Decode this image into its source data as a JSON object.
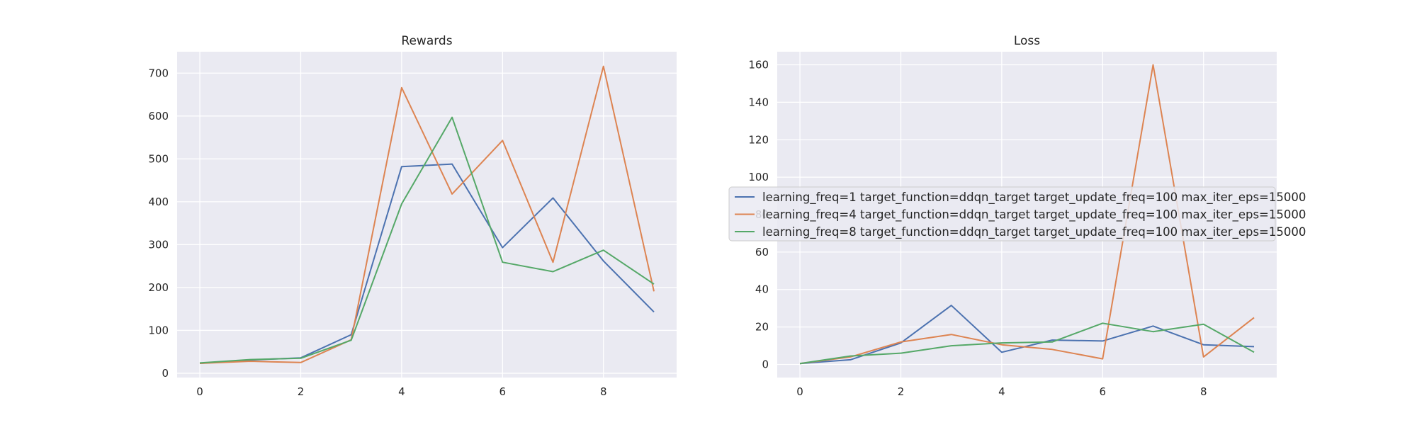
{
  "chart_data": [
    {
      "type": "line",
      "title": "Rewards",
      "xlabel": "",
      "ylabel": "",
      "x": [
        0,
        1,
        2,
        3,
        4,
        5,
        6,
        7,
        8,
        9
      ],
      "xlim": [
        -0.45,
        9.45
      ],
      "ylim": [
        -10,
        750
      ],
      "xticks": [
        0,
        2,
        4,
        6,
        8
      ],
      "yticks": [
        0,
        100,
        200,
        300,
        400,
        500,
        600,
        700
      ],
      "grid": true,
      "series": [
        {
          "values": [
            23,
            31,
            36,
            90,
            482,
            488,
            293,
            409,
            262,
            143
          ]
        },
        {
          "values": [
            23,
            28,
            25,
            78,
            666,
            418,
            543,
            259,
            716,
            191
          ]
        },
        {
          "values": [
            24,
            32,
            35,
            77,
            395,
            597,
            259,
            237,
            287,
            208
          ]
        }
      ]
    },
    {
      "type": "line",
      "title": "Loss",
      "xlabel": "",
      "ylabel": "",
      "x": [
        0,
        1,
        2,
        3,
        4,
        5,
        6,
        7,
        8,
        9
      ],
      "xlim": [
        -0.45,
        9.45
      ],
      "ylim": [
        -7,
        167
      ],
      "xticks": [
        0,
        2,
        4,
        6,
        8
      ],
      "yticks": [
        0,
        20,
        40,
        60,
        80,
        100,
        120,
        140,
        160
      ],
      "grid": true,
      "legend_position": "center-left",
      "series": [
        {
          "name": "learning_freq=1 target_function=ddqn_target target_update_freq=100 max_iter_eps=15000",
          "values": [
            0.5,
            2.5,
            11.5,
            31.5,
            6.5,
            13,
            12.5,
            20.5,
            10.5,
            9.5
          ]
        },
        {
          "name": "learning_freq=4 target_function=ddqn_target target_update_freq=100 max_iter_eps=15000",
          "values": [
            0.5,
            4,
            12,
            16,
            10.5,
            8,
            3,
            160,
            4,
            25
          ]
        },
        {
          "name": "learning_freq=8 target_function=ddqn_target target_update_freq=100 max_iter_eps=15000",
          "values": [
            0.5,
            4.5,
            6,
            10,
            11.5,
            12,
            22,
            17.5,
            21.5,
            6.5
          ]
        }
      ]
    }
  ],
  "colors": {
    "series": [
      "#4c72b0",
      "#dd8452",
      "#55a868"
    ],
    "plot_background": "#eaeaf2",
    "grid": "#ffffff"
  }
}
